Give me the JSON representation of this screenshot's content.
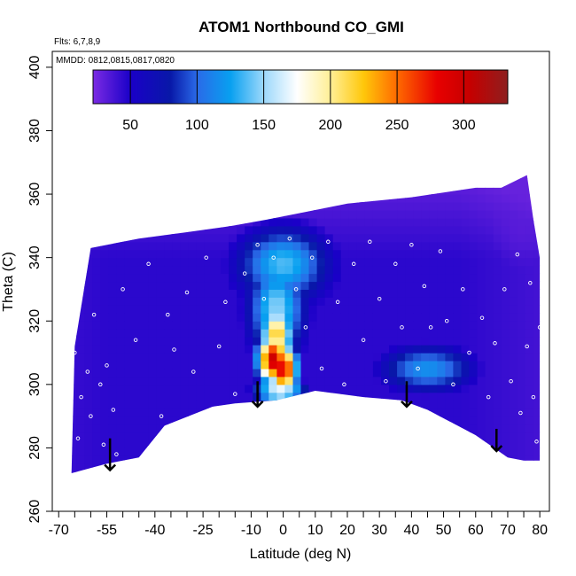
{
  "chart_data": {
    "type": "heatmap",
    "title": "ATOM1 Northbound CO_GMI",
    "subtitle": "Flts: 6,7,8,9",
    "annotation": "MMDD: 0812,0815,0817,0820",
    "xlabel": "Latitude (deg N)",
    "ylabel": "Theta (C)",
    "xlim": [
      -72,
      83
    ],
    "ylim": [
      260,
      405
    ],
    "x_ticks": [
      -70,
      -55,
      -40,
      -25,
      -10,
      0,
      10,
      20,
      30,
      40,
      50,
      60,
      70,
      80
    ],
    "x_tick_labels": [
      "-70",
      "-55",
      "-40",
      "-25",
      "-10",
      "0",
      "10",
      "20",
      "30",
      "40",
      "50",
      "60",
      "70",
      "80"
    ],
    "y_ticks": [
      260,
      280,
      300,
      320,
      340,
      360,
      380,
      400
    ],
    "y_tick_labels": [
      "260",
      "280",
      "300",
      "320",
      "340",
      "360",
      "380",
      "400"
    ],
    "colorbar": {
      "range": [
        22,
        333
      ],
      "ticks": [
        50,
        100,
        150,
        200,
        250,
        300
      ],
      "tick_labels": [
        "50",
        "100",
        "150",
        "200",
        "250",
        "300"
      ],
      "stops": [
        {
          "value": 22,
          "color": "#7b2be3"
        },
        {
          "value": 50,
          "color": "#1a00c8"
        },
        {
          "value": 80,
          "color": "#0818a8"
        },
        {
          "value": 100,
          "color": "#2a6ae8"
        },
        {
          "value": 125,
          "color": "#08a0f0"
        },
        {
          "value": 150,
          "color": "#9cd8fb"
        },
        {
          "value": 175,
          "color": "#ffffff"
        },
        {
          "value": 200,
          "color": "#ffef96"
        },
        {
          "value": 225,
          "color": "#ffc70a"
        },
        {
          "value": 250,
          "color": "#ff6a00"
        },
        {
          "value": 280,
          "color": "#e80000"
        },
        {
          "value": 305,
          "color": "#c50000"
        },
        {
          "value": 333,
          "color": "#8e1f1f"
        }
      ]
    },
    "data_top_boundary": [
      {
        "lat": -65,
        "theta": 312
      },
      {
        "lat": -60,
        "theta": 343
      },
      {
        "lat": -45,
        "theta": 346
      },
      {
        "lat": -30,
        "theta": 348
      },
      {
        "lat": -16,
        "theta": 350
      },
      {
        "lat": -5,
        "theta": 352
      },
      {
        "lat": 10,
        "theta": 355
      },
      {
        "lat": 20,
        "theta": 357
      },
      {
        "lat": 40,
        "theta": 359
      },
      {
        "lat": 60,
        "theta": 362
      },
      {
        "lat": 68,
        "theta": 362
      },
      {
        "lat": 76,
        "theta": 366
      },
      {
        "lat": 78,
        "theta": 352
      },
      {
        "lat": 80,
        "theta": 340
      },
      {
        "lat": 80,
        "theta": 305
      }
    ],
    "data_bottom_boundary": [
      {
        "lat": 80,
        "theta": 276
      },
      {
        "lat": 75,
        "theta": 276
      },
      {
        "lat": 70,
        "theta": 277
      },
      {
        "lat": 60,
        "theta": 284
      },
      {
        "lat": 45,
        "theta": 292
      },
      {
        "lat": 37,
        "theta": 295
      },
      {
        "lat": 25,
        "theta": 296
      },
      {
        "lat": 10,
        "theta": 298
      },
      {
        "lat": -2,
        "theta": 295
      },
      {
        "lat": -15,
        "theta": 294
      },
      {
        "lat": -22,
        "theta": 293
      },
      {
        "lat": -37,
        "theta": 287
      },
      {
        "lat": -45,
        "theta": 277
      },
      {
        "lat": -55,
        "theta": 275
      },
      {
        "lat": -66,
        "theta": 272
      }
    ],
    "field_features": [
      {
        "description": "background",
        "value": 45
      },
      {
        "lat": -3,
        "theta": 308,
        "value": 300
      },
      {
        "lat": 0,
        "theta": 305,
        "value": 290
      },
      {
        "lat": -2,
        "theta": 316,
        "value": 225
      },
      {
        "lat": -1,
        "theta": 298,
        "value": 175
      },
      {
        "lat": -2,
        "theta": 324,
        "value": 125
      },
      {
        "lat": 0,
        "theta": 338,
        "value": 110
      },
      {
        "lat": 45,
        "theta": 305,
        "value": 105
      },
      {
        "lat": 74,
        "theta": 350,
        "value": 32
      }
    ],
    "arrows": [
      {
        "lat": -54,
        "theta_start": 283,
        "theta_end": 273
      },
      {
        "lat": -8,
        "theta_start": 301,
        "theta_end": 293
      },
      {
        "lat": 38.5,
        "theta_start": 301,
        "theta_end": 293
      },
      {
        "lat": 66.5,
        "theta_start": 286,
        "theta_end": 279
      }
    ],
    "observation_points": [
      {
        "lat": -65,
        "theta": 310
      },
      {
        "lat": -64,
        "theta": 283
      },
      {
        "lat": -63,
        "theta": 296
      },
      {
        "lat": -61,
        "theta": 304
      },
      {
        "lat": -60,
        "theta": 290
      },
      {
        "lat": -59,
        "theta": 322
      },
      {
        "lat": -57,
        "theta": 300
      },
      {
        "lat": -56,
        "theta": 281
      },
      {
        "lat": -55,
        "theta": 306
      },
      {
        "lat": -53,
        "theta": 292
      },
      {
        "lat": -52,
        "theta": 278
      },
      {
        "lat": -50,
        "theta": 330
      },
      {
        "lat": -46,
        "theta": 314
      },
      {
        "lat": -42,
        "theta": 338
      },
      {
        "lat": -38,
        "theta": 290
      },
      {
        "lat": -36,
        "theta": 322
      },
      {
        "lat": -34,
        "theta": 311
      },
      {
        "lat": -30,
        "theta": 329
      },
      {
        "lat": -28,
        "theta": 304
      },
      {
        "lat": -24,
        "theta": 340
      },
      {
        "lat": -20,
        "theta": 312
      },
      {
        "lat": -18,
        "theta": 326
      },
      {
        "lat": -15,
        "theta": 297
      },
      {
        "lat": -12,
        "theta": 335
      },
      {
        "lat": -8,
        "theta": 344
      },
      {
        "lat": -6,
        "theta": 327
      },
      {
        "lat": -3,
        "theta": 340
      },
      {
        "lat": 2,
        "theta": 346
      },
      {
        "lat": 4,
        "theta": 330
      },
      {
        "lat": 7,
        "theta": 318
      },
      {
        "lat": 9,
        "theta": 340
      },
      {
        "lat": 12,
        "theta": 305
      },
      {
        "lat": 14,
        "theta": 345
      },
      {
        "lat": 17,
        "theta": 326
      },
      {
        "lat": 19,
        "theta": 300
      },
      {
        "lat": 22,
        "theta": 338
      },
      {
        "lat": 25,
        "theta": 314
      },
      {
        "lat": 27,
        "theta": 345
      },
      {
        "lat": 30,
        "theta": 327
      },
      {
        "lat": 32,
        "theta": 301
      },
      {
        "lat": 35,
        "theta": 338
      },
      {
        "lat": 37,
        "theta": 318
      },
      {
        "lat": 40,
        "theta": 344
      },
      {
        "lat": 42,
        "theta": 305
      },
      {
        "lat": 44,
        "theta": 331
      },
      {
        "lat": 46,
        "theta": 318
      },
      {
        "lat": 49,
        "theta": 342
      },
      {
        "lat": 51,
        "theta": 320
      },
      {
        "lat": 53,
        "theta": 300
      },
      {
        "lat": 56,
        "theta": 330
      },
      {
        "lat": 58,
        "theta": 310
      },
      {
        "lat": 62,
        "theta": 321
      },
      {
        "lat": 64,
        "theta": 296
      },
      {
        "lat": 66,
        "theta": 313
      },
      {
        "lat": 69,
        "theta": 330
      },
      {
        "lat": 71,
        "theta": 301
      },
      {
        "lat": 73,
        "theta": 341
      },
      {
        "lat": 74,
        "theta": 291
      },
      {
        "lat": 76,
        "theta": 312
      },
      {
        "lat": 77,
        "theta": 332
      },
      {
        "lat": 78,
        "theta": 296
      },
      {
        "lat": 79,
        "theta": 282
      },
      {
        "lat": 80,
        "theta": 318
      }
    ]
  }
}
